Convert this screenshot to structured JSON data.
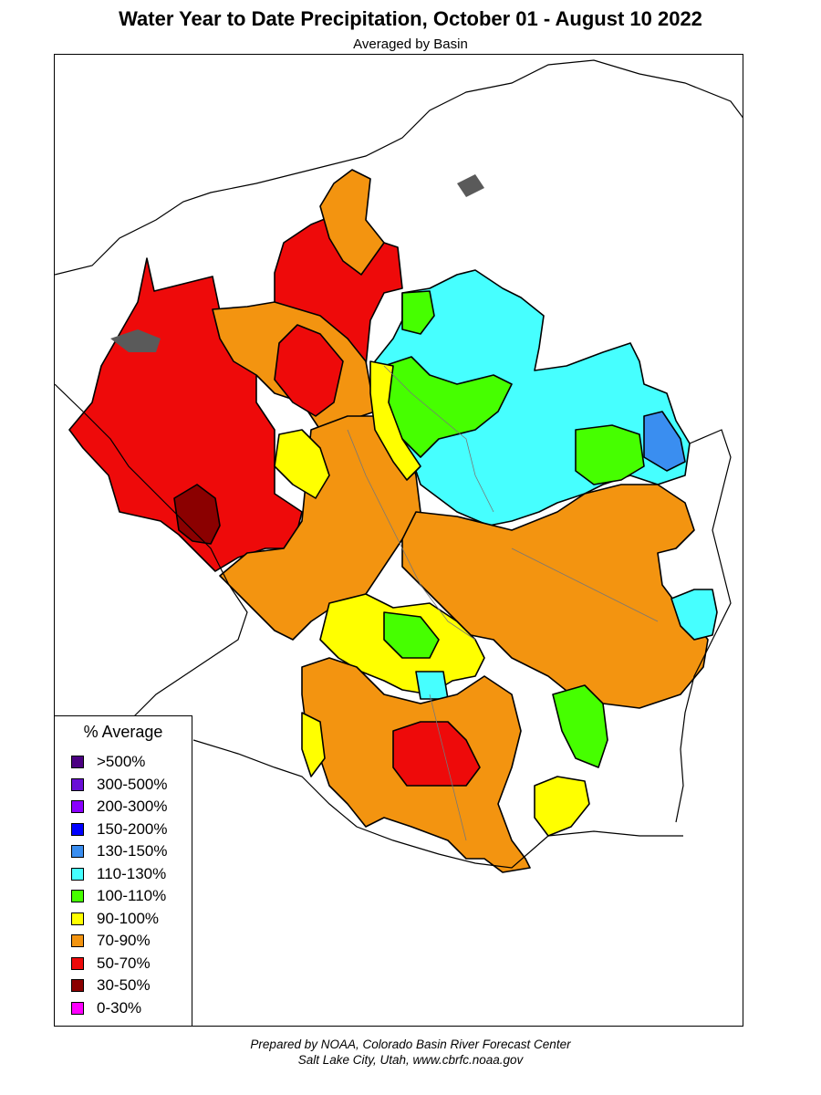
{
  "title": "Water Year to Date Precipitation, October 01  - August 10 2022",
  "subtitle": "Averaged by Basin",
  "legend": {
    "title": "% Average",
    "items": [
      {
        "label": ">500%",
        "color": "#4b0082"
      },
      {
        "label": "300-500%",
        "color": "#6a0fd6"
      },
      {
        "label": "200-300%",
        "color": "#8a00ff"
      },
      {
        "label": "150-200%",
        "color": "#0000ff"
      },
      {
        "label": "130-150%",
        "color": "#3a8ef0"
      },
      {
        "label": "110-130%",
        "color": "#46ffff"
      },
      {
        "label": "100-110%",
        "color": "#46ff00"
      },
      {
        "label": "90-100%",
        "color": "#ffff00"
      },
      {
        "label": "70-90%",
        "color": "#f39410"
      },
      {
        "label": "50-70%",
        "color": "#ee0a0a"
      },
      {
        "label": "30-50%",
        "color": "#8b0000"
      },
      {
        "label": "0-30%",
        "color": "#ff00ff"
      }
    ]
  },
  "footer": {
    "line1": "Prepared by NOAA, Colorado Basin River Forecast Center",
    "line2": "Salt Lake City, Utah, www.cbrfc.noaa.gov"
  }
}
